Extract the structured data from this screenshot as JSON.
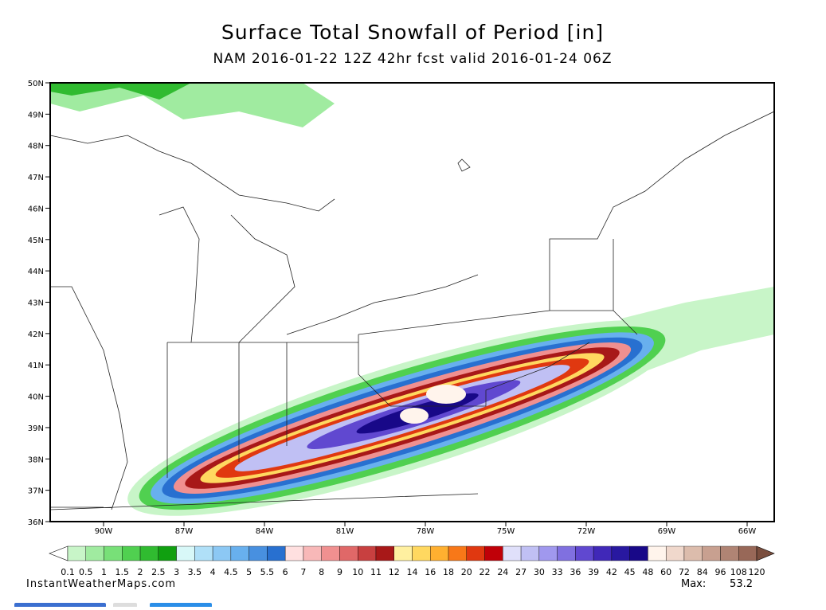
{
  "header": {
    "title": "Surface Total Snowfall of Period [in]",
    "subtitle": "NAM 2016-01-22 12Z 42hr fcst valid 2016-01-24 06Z"
  },
  "map": {
    "lat_labels": [
      "50N",
      "49N",
      "48N",
      "47N",
      "46N",
      "45N",
      "44N",
      "43N",
      "42N",
      "41N",
      "40N",
      "39N",
      "38N",
      "37N",
      "36N"
    ],
    "lon_labels": [
      "90W",
      "87W",
      "84W",
      "81W",
      "78W",
      "75W",
      "72W",
      "69W",
      "66W"
    ]
  },
  "colorbar": {
    "labels": [
      "0.1",
      "0.5",
      "1",
      "1.5",
      "2",
      "2.5",
      "3",
      "3.5",
      "4",
      "4.5",
      "5",
      "5.5",
      "6",
      "7",
      "8",
      "9",
      "10",
      "11",
      "12",
      "14",
      "16",
      "18",
      "20",
      "22",
      "24",
      "27",
      "30",
      "33",
      "36",
      "39",
      "42",
      "45",
      "48",
      "60",
      "72",
      "84",
      "96",
      "108",
      "120"
    ],
    "colors": [
      "#c8f5c8",
      "#a0eba0",
      "#78e078",
      "#50d050",
      "#30bb30",
      "#10a010",
      "#d8f8f8",
      "#b0e0f8",
      "#8cc8f4",
      "#68b0ee",
      "#4890e0",
      "#2870d0",
      "#ffe0e0",
      "#f8b8b8",
      "#f09090",
      "#e06868",
      "#c84040",
      "#a81818",
      "#fff0a0",
      "#ffd860",
      "#ffb030",
      "#f87818",
      "#e03810",
      "#c00008",
      "#e0e0fa",
      "#c0c0f4",
      "#a098ee",
      "#8070e0",
      "#6048d0",
      "#4028b8",
      "#2818a0",
      "#180888",
      "#fff4ec",
      "#f0d8cc",
      "#dcbcac",
      "#c8a090",
      "#b08474",
      "#986858"
    ]
  },
  "footer": {
    "credit": "InstantWeatherMaps.com",
    "max_label": "Max:",
    "max_value": "53.2"
  }
}
